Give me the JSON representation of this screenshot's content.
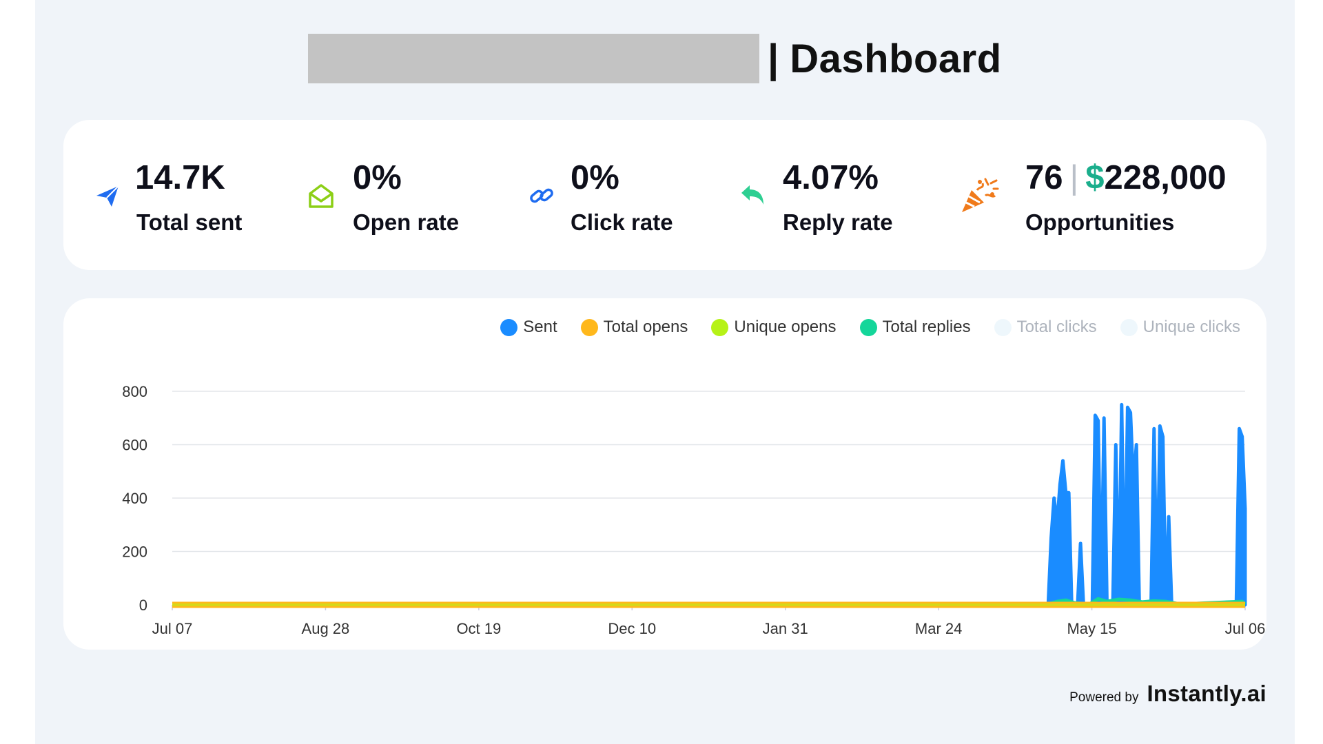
{
  "header": {
    "separator": "|",
    "title": "Dashboard"
  },
  "stats": [
    {
      "icon": "paper-plane-icon",
      "value": "14.7K",
      "label": "Total sent",
      "color": "#1f6cf0"
    },
    {
      "icon": "open-envelope-icon",
      "value": "0%",
      "label": "Open rate",
      "color": "#8ccf16"
    },
    {
      "icon": "link-icon",
      "value": "0%",
      "label": "Click rate",
      "color": "#1f6cf0"
    },
    {
      "icon": "reply-arrow-icon",
      "value": "4.07%",
      "label": "Reply rate",
      "color": "#2ecf92"
    },
    {
      "icon": "party-popper-icon",
      "value_count": "76",
      "value_separator": "|",
      "value_currency": "$",
      "value_amount": "228,000",
      "label": "Opportunities",
      "color": "#f07a1a"
    }
  ],
  "footer": {
    "powered_label": "Powered by",
    "brand": "Instantly.ai"
  },
  "chart_data": {
    "type": "area",
    "title": "",
    "xlabel": "",
    "ylabel": "",
    "ylim": [
      0,
      800
    ],
    "yticks": [
      "800",
      "600",
      "400",
      "200",
      "0"
    ],
    "xticks": [
      "Jul 07",
      "Aug 28",
      "Oct 19",
      "Dec 10",
      "Jan 31",
      "Mar 24",
      "May 15",
      "Jul 06"
    ],
    "grid": true,
    "legend_position": "top-right",
    "legend": [
      {
        "name": "Sent",
        "color": "#1a8cff",
        "active": true
      },
      {
        "name": "Total opens",
        "color": "#ffb81c",
        "active": true
      },
      {
        "name": "Unique opens",
        "color": "#b6f217",
        "active": true
      },
      {
        "name": "Total replies",
        "color": "#14d69a",
        "active": true
      },
      {
        "name": "Total clicks",
        "color": "#eef7fc",
        "active": false
      },
      {
        "name": "Unique clicks",
        "color": "#eef7fc",
        "active": false
      }
    ],
    "x_start": "2023-07-07",
    "x_end": "2024-07-06",
    "series": [
      {
        "name": "Sent",
        "color": "#1a8cff",
        "points": [
          [
            "2024-04-30",
            0
          ],
          [
            "2024-05-01",
            250
          ],
          [
            "2024-05-02",
            400
          ],
          [
            "2024-05-03",
            300
          ],
          [
            "2024-05-04",
            450
          ],
          [
            "2024-05-05",
            540
          ],
          [
            "2024-05-06",
            420
          ],
          [
            "2024-05-07",
            420
          ],
          [
            "2024-05-08",
            0
          ],
          [
            "2024-05-09",
            0
          ],
          [
            "2024-05-10",
            0
          ],
          [
            "2024-05-11",
            230
          ],
          [
            "2024-05-12",
            0
          ],
          [
            "2024-05-13",
            0
          ],
          [
            "2024-05-14",
            0
          ],
          [
            "2024-05-15",
            0
          ],
          [
            "2024-05-16",
            710
          ],
          [
            "2024-05-17",
            690
          ],
          [
            "2024-05-18",
            0
          ],
          [
            "2024-05-19",
            700
          ],
          [
            "2024-05-20",
            0
          ],
          [
            "2024-05-21",
            0
          ],
          [
            "2024-05-22",
            0
          ],
          [
            "2024-05-23",
            600
          ],
          [
            "2024-05-24",
            0
          ],
          [
            "2024-05-25",
            750
          ],
          [
            "2024-05-26",
            0
          ],
          [
            "2024-05-27",
            740
          ],
          [
            "2024-05-28",
            720
          ],
          [
            "2024-05-29",
            450
          ],
          [
            "2024-05-30",
            600
          ],
          [
            "2024-05-31",
            0
          ],
          [
            "2024-06-01",
            0
          ],
          [
            "2024-06-02",
            0
          ],
          [
            "2024-06-03",
            0
          ],
          [
            "2024-06-04",
            0
          ],
          [
            "2024-06-05",
            660
          ],
          [
            "2024-06-06",
            0
          ],
          [
            "2024-06-07",
            670
          ],
          [
            "2024-06-08",
            630
          ],
          [
            "2024-06-09",
            0
          ],
          [
            "2024-06-10",
            330
          ],
          [
            "2024-06-11",
            0
          ],
          [
            "2024-06-12",
            0
          ],
          [
            "2024-06-13",
            0
          ],
          [
            "2024-06-14",
            0
          ],
          [
            "2024-06-15",
            0
          ],
          [
            "2024-06-16",
            0
          ],
          [
            "2024-06-17",
            0
          ],
          [
            "2024-06-18",
            0
          ],
          [
            "2024-06-19",
            0
          ],
          [
            "2024-06-20",
            0
          ],
          [
            "2024-06-21",
            0
          ],
          [
            "2024-06-22",
            0
          ],
          [
            "2024-06-23",
            0
          ],
          [
            "2024-06-24",
            0
          ],
          [
            "2024-06-25",
            0
          ],
          [
            "2024-06-26",
            0
          ],
          [
            "2024-06-27",
            0
          ],
          [
            "2024-06-28",
            0
          ],
          [
            "2024-06-29",
            0
          ],
          [
            "2024-06-30",
            0
          ],
          [
            "2024-07-01",
            0
          ],
          [
            "2024-07-02",
            0
          ],
          [
            "2024-07-03",
            0
          ],
          [
            "2024-07-04",
            660
          ],
          [
            "2024-07-05",
            630
          ],
          [
            "2024-07-06",
            360
          ]
        ]
      },
      {
        "name": "Total opens",
        "color": "#ffb81c",
        "points": [
          [
            "2023-07-07",
            0
          ],
          [
            "2024-07-06",
            0
          ]
        ]
      },
      {
        "name": "Unique opens",
        "color": "#b6f217",
        "points": [
          [
            "2023-07-07",
            0
          ],
          [
            "2024-07-06",
            0
          ]
        ]
      },
      {
        "name": "Total replies",
        "color": "#14d69a",
        "points": [
          [
            "2024-04-30",
            0
          ],
          [
            "2024-05-03",
            10
          ],
          [
            "2024-05-06",
            15
          ],
          [
            "2024-05-09",
            5
          ],
          [
            "2024-05-14",
            0
          ],
          [
            "2024-05-17",
            20
          ],
          [
            "2024-05-20",
            10
          ],
          [
            "2024-05-24",
            18
          ],
          [
            "2024-05-28",
            15
          ],
          [
            "2024-06-01",
            8
          ],
          [
            "2024-06-05",
            12
          ],
          [
            "2024-06-09",
            10
          ],
          [
            "2024-06-14",
            0
          ],
          [
            "2024-07-05",
            10
          ],
          [
            "2024-07-06",
            0
          ]
        ]
      }
    ]
  }
}
